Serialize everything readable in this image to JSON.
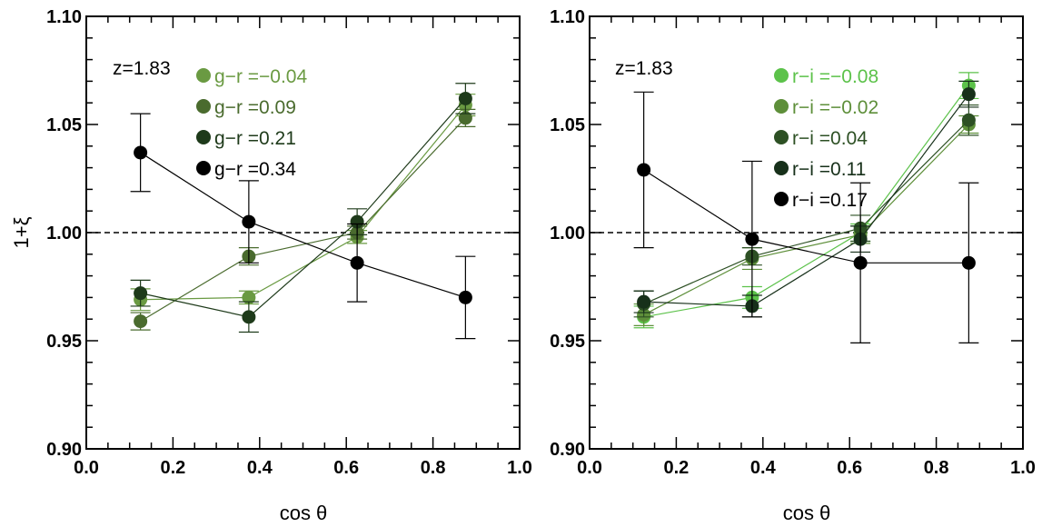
{
  "chart_data": [
    {
      "type": "scatter",
      "annotation": "z=1.83",
      "xlabel": "cos θ",
      "ylabel": "1+ξ",
      "xlim": [
        0.0,
        1.0
      ],
      "ylim": [
        0.9,
        1.1
      ],
      "xticks": [
        "0.0",
        "0.2",
        "0.4",
        "0.6",
        "0.8",
        "1.0"
      ],
      "yticks": [
        "0.90",
        "0.95",
        "1.00",
        "1.05",
        "1.10"
      ],
      "reference_line": 1.0,
      "legend_position": "top-center",
      "x": [
        0.125,
        0.375,
        0.625,
        0.875
      ],
      "series": [
        {
          "name": "g−r =−0.04",
          "color": "#6a9a42",
          "values": [
            0.969,
            0.97,
            0.998,
            1.059
          ],
          "errors": [
            0.005,
            0.003,
            0.003,
            0.005
          ]
        },
        {
          "name": "g−r =0.09",
          "color": "#4a6b2e",
          "values": [
            0.959,
            0.989,
            1.0,
            1.053
          ],
          "errors": [
            0.004,
            0.004,
            0.003,
            0.004
          ]
        },
        {
          "name": "g−r =0.21",
          "color": "#1e3a1a",
          "values": [
            0.972,
            0.961,
            1.005,
            1.062
          ],
          "errors": [
            0.006,
            0.007,
            0.006,
            0.007
          ]
        },
        {
          "name": "g−r =0.34",
          "color": "#000000",
          "values": [
            1.037,
            1.005,
            0.986,
            0.97
          ],
          "errors": [
            0.018,
            0.019,
            0.018,
            0.019
          ]
        }
      ]
    },
    {
      "type": "scatter",
      "annotation": "z=1.83",
      "xlabel": "cos θ",
      "ylabel": "",
      "xlim": [
        0.0,
        1.0
      ],
      "ylim": [
        0.9,
        1.1
      ],
      "xticks": [
        "0.0",
        "0.2",
        "0.4",
        "0.6",
        "0.8",
        "1.0"
      ],
      "yticks": [
        "0.90",
        "0.95",
        "1.00",
        "1.05",
        "1.10"
      ],
      "reference_line": 1.0,
      "legend_position": "top-center",
      "x": [
        0.125,
        0.375,
        0.625,
        0.875
      ],
      "series": [
        {
          "name": "r−i =−0.08",
          "color": "#5cc24a",
          "values": [
            0.961,
            0.97,
            1.0,
            1.068
          ],
          "errors": [
            0.005,
            0.005,
            0.004,
            0.006
          ]
        },
        {
          "name": "r−i =−0.02",
          "color": "#5e8f3a",
          "values": [
            0.962,
            0.988,
            0.999,
            1.05
          ],
          "errors": [
            0.005,
            0.005,
            0.004,
            0.004
          ]
        },
        {
          "name": "r−i =0.04",
          "color": "#2d5024",
          "values": [
            0.967,
            0.989,
            1.002,
            1.052
          ],
          "errors": [
            0.006,
            0.004,
            0.006,
            0.007
          ]
        },
        {
          "name": "r−i =0.11",
          "color": "#17301a",
          "values": [
            0.968,
            0.966,
            0.997,
            1.064
          ],
          "errors": [
            0.005,
            0.005,
            0.006,
            0.006
          ]
        },
        {
          "name": "r−i =0.17",
          "color": "#000000",
          "values": [
            1.029,
            0.997,
            0.986,
            0.986
          ],
          "errors": [
            0.036,
            0.036,
            0.037,
            0.037
          ]
        }
      ]
    }
  ]
}
